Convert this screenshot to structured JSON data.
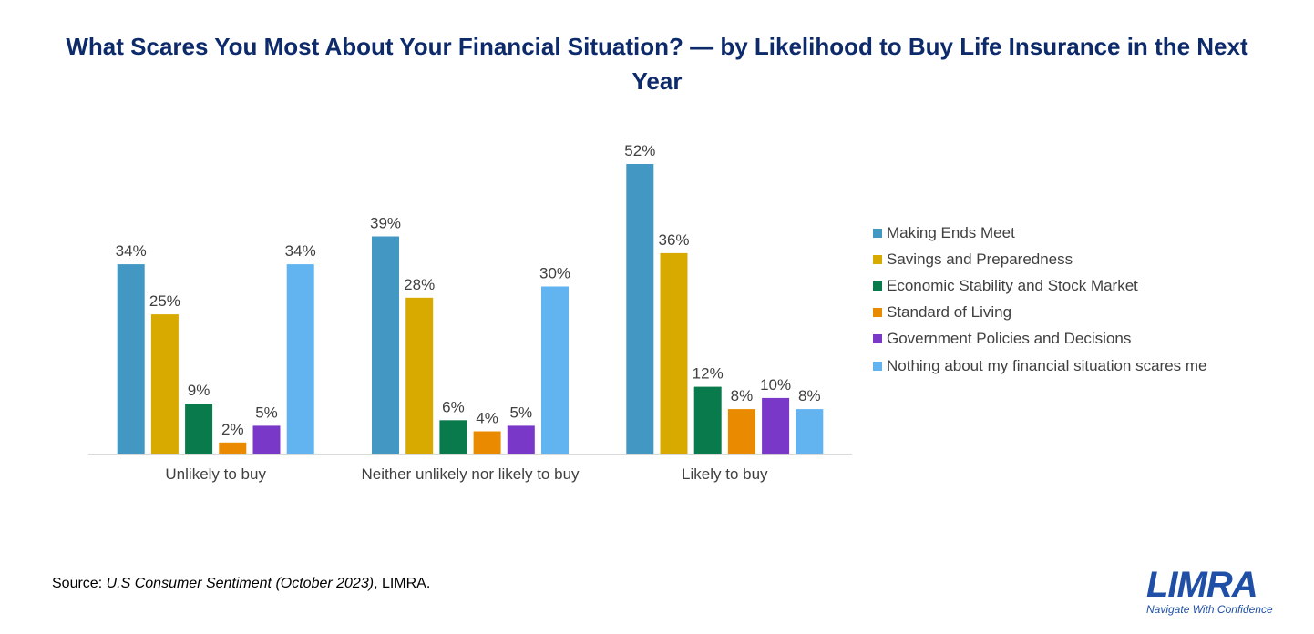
{
  "chart_data": {
    "type": "bar",
    "title": "What Scares You Most About Your Financial Situation? — by Likelihood to Buy Life Insurance in the Next Year",
    "categories": [
      "Unlikely to buy",
      "Neither unlikely nor likely to buy",
      "Likely to buy"
    ],
    "series": [
      {
        "name": "Making Ends Meet",
        "values": [
          34,
          39,
          52
        ],
        "labels": [
          "34%",
          "39%",
          "52%"
        ],
        "color": "#4398c3"
      },
      {
        "name": "Savings and Preparedness",
        "values": [
          25,
          28,
          36
        ],
        "labels": [
          "25%",
          "28%",
          "36%"
        ],
        "color": "#d8aa00"
      },
      {
        "name": "Economic Stability and Stock Market",
        "values": [
          9,
          6,
          12
        ],
        "labels": [
          "9%",
          "6%",
          "12%"
        ],
        "color": "#087a4c"
      },
      {
        "name": "Standard of Living",
        "values": [
          2,
          4,
          8
        ],
        "labels": [
          "2%",
          "4%",
          "8%"
        ],
        "color": "#ea8a00"
      },
      {
        "name": "Government Policies and Decisions",
        "values": [
          5,
          5,
          10
        ],
        "labels": [
          "5%",
          "5%",
          "10%"
        ],
        "color": "#7a38c8"
      },
      {
        "name": "Nothing about my financial situation scares me",
        "values": [
          34,
          30,
          8
        ],
        "labels": [
          "34%",
          "30%",
          "8%"
        ],
        "color": "#62b4f0"
      }
    ],
    "ylim": [
      0,
      52
    ],
    "grid": false,
    "legend_position": "right"
  },
  "source": {
    "prefix": "Source: ",
    "title_italic": "U.S Consumer Sentiment (October 2023)",
    "suffix": ", LIMRA."
  },
  "logo": {
    "mark": "LIMRA",
    "tagline": "Navigate With Confidence"
  }
}
